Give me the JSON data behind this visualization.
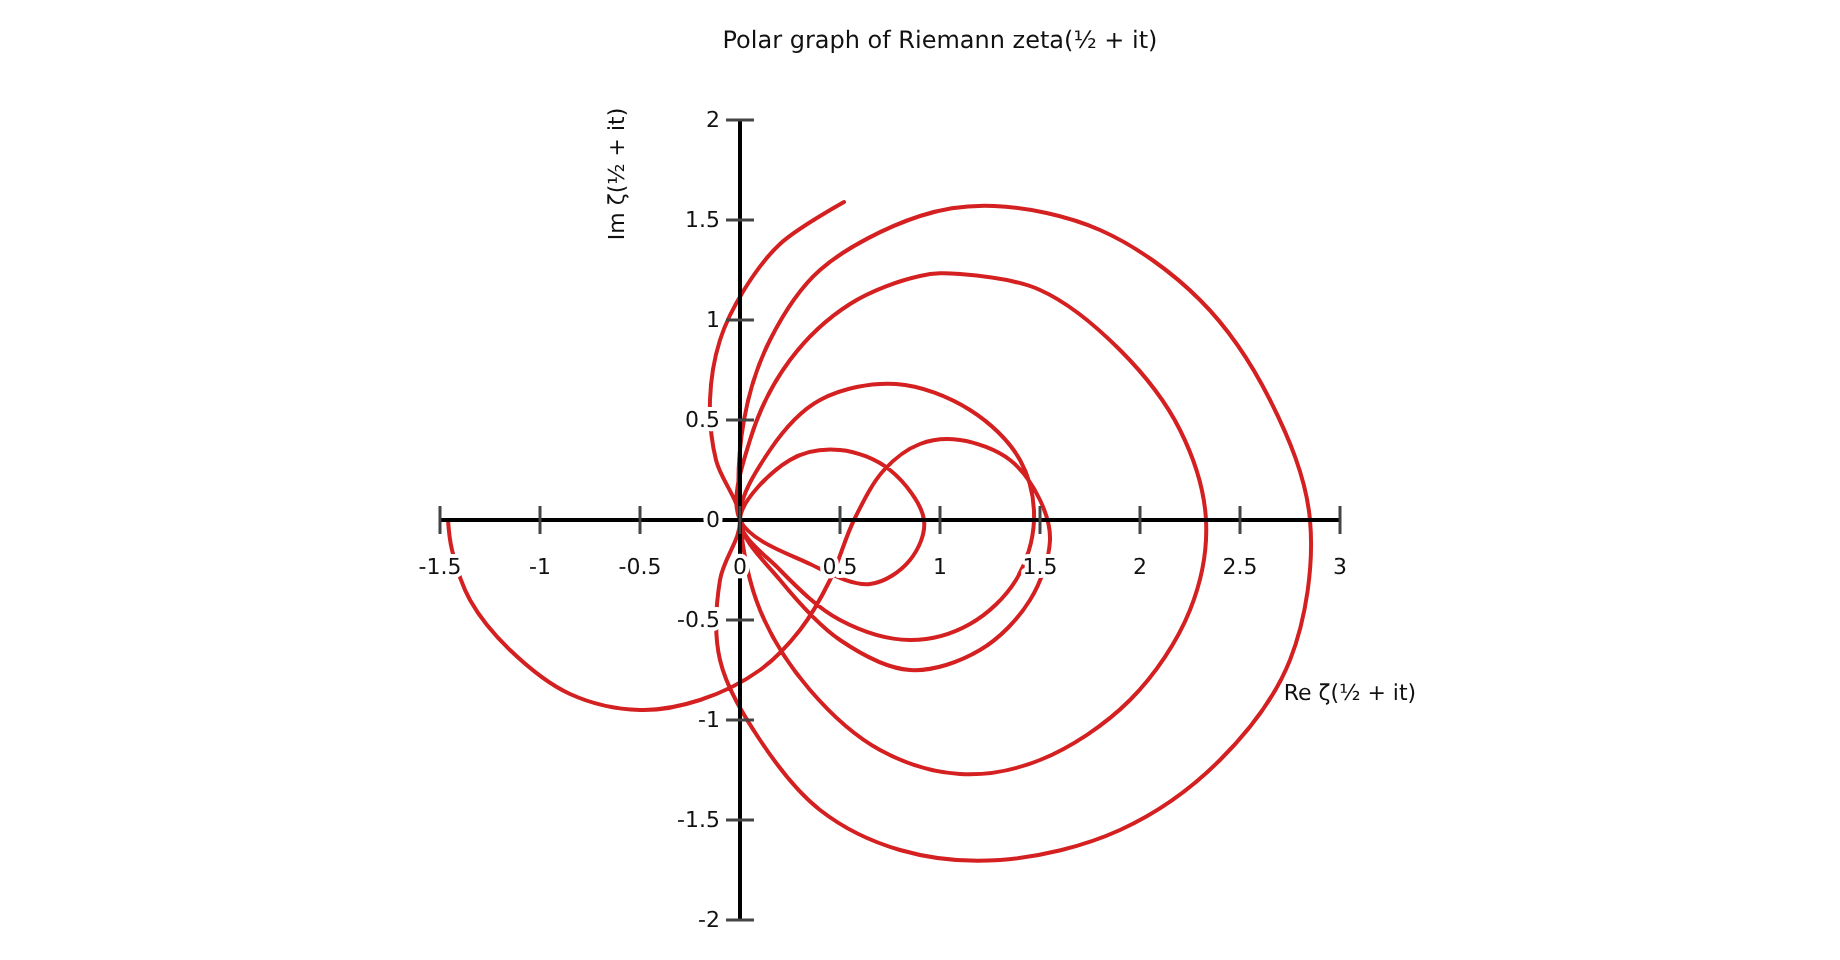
{
  "chart_data": {
    "type": "line",
    "title": "Polar graph of Riemann zeta(½ + it)",
    "xlabel": "Re ζ(½ + it)",
    "ylabel": "Im ζ(½ + it)",
    "xlim": [
      -1.5,
      3
    ],
    "ylim": [
      -2,
      2
    ],
    "xticks": [
      -1.5,
      -1,
      -0.5,
      0,
      0.5,
      1,
      1.5,
      2,
      2.5,
      3
    ],
    "yticks": [
      -2,
      -1.5,
      -1,
      -0.5,
      0,
      0.5,
      1,
      1.5,
      2
    ],
    "grid": false,
    "marker": "none",
    "line_style": "solid",
    "series": [
      {
        "color": "#d42020",
        "x": [
          -1.46,
          -1.44,
          -1.35,
          -1.15,
          -0.85,
          -0.5,
          -0.2,
          0.1,
          0.3,
          0.45,
          0.57,
          0.72,
          0.9,
          1.1,
          1.35,
          1.5,
          1.55,
          1.45,
          1.2,
          0.85,
          0.5,
          0.2,
          0,
          0.15,
          0.4,
          0.78,
          1.15,
          1.4,
          1.47,
          1.38,
          1.15,
          0.85,
          0.5,
          0.2,
          0,
          0.25,
          0.5,
          0.75,
          0.92,
          0.85,
          0.65,
          0.35,
          0,
          0.05,
          0.25,
          0.55,
          0.9,
          1.1,
          1.5,
          1.9,
          2.2,
          2.33,
          2.25,
          1.95,
          1.5,
          1.1,
          0.7,
          0.35,
          0.1,
          0,
          0.02,
          0.15,
          0.4,
          0.9,
          1.27,
          1.8,
          2.3,
          2.65,
          2.85,
          2.75,
          2.4,
          1.9,
          1.3,
          0.8,
          0.4,
          0.1,
          -0.1,
          -0.1,
          0,
          -0.12,
          -0.15,
          -0.1,
          0.02,
          0.2,
          0.52
        ],
        "values": [
          0,
          -0.15,
          -0.4,
          -0.65,
          -0.87,
          -0.95,
          -0.9,
          -0.75,
          -0.55,
          -0.3,
          0,
          0.25,
          0.38,
          0.4,
          0.3,
          0.1,
          -0.1,
          -0.4,
          -0.65,
          -0.75,
          -0.6,
          -0.3,
          0,
          0.35,
          0.6,
          0.68,
          0.55,
          0.3,
          0,
          -0.3,
          -0.52,
          -0.6,
          -0.5,
          -0.25,
          0,
          0.3,
          0.35,
          0.25,
          0,
          -0.2,
          -0.32,
          -0.22,
          0,
          0.4,
          0.8,
          1.08,
          1.22,
          1.23,
          1.15,
          0.85,
          0.45,
          0,
          -0.45,
          -0.9,
          -1.2,
          -1.27,
          -1.15,
          -0.85,
          -0.45,
          0,
          0.5,
          0.9,
          1.25,
          1.52,
          1.57,
          1.45,
          1.1,
          0.6,
          0,
          -0.7,
          -1.2,
          -1.55,
          -1.7,
          -1.65,
          -1.45,
          -1.1,
          -0.7,
          -0.3,
          0,
          0.3,
          0.6,
          0.9,
          1.15,
          1.38,
          1.59
        ]
      }
    ]
  }
}
